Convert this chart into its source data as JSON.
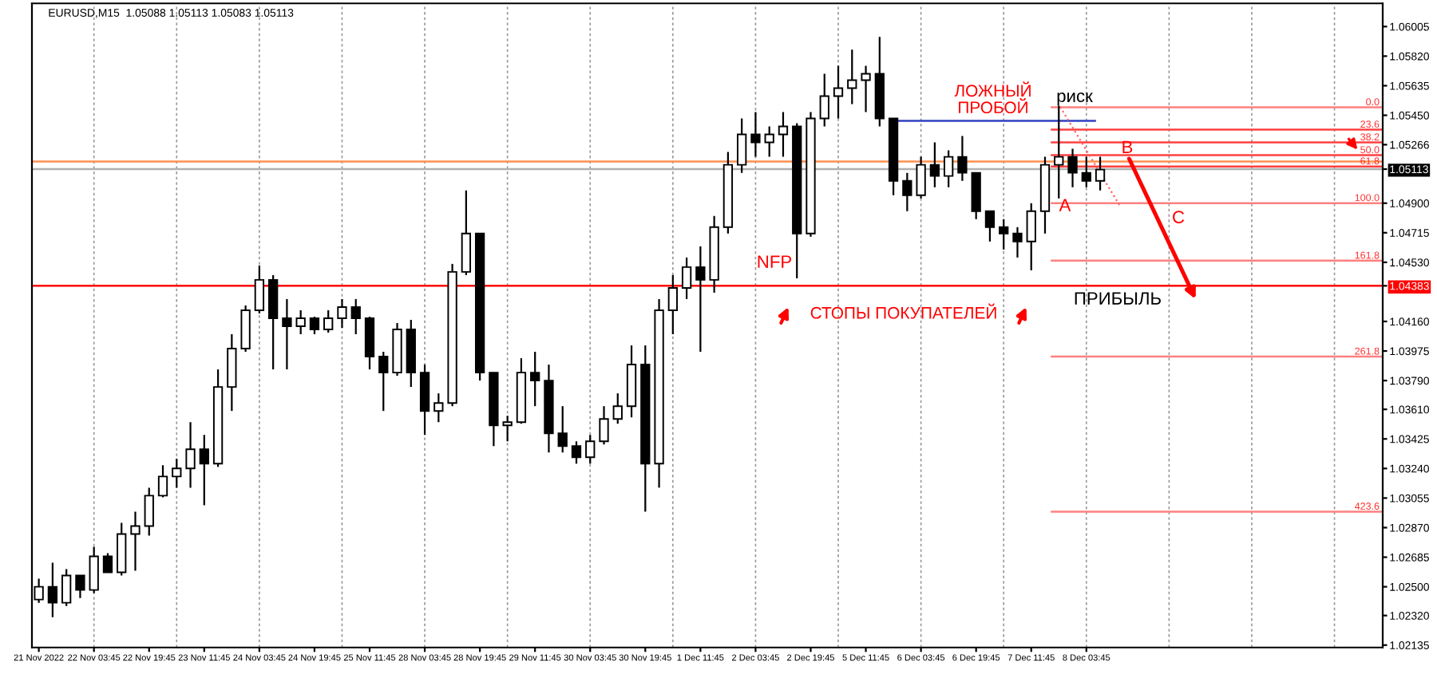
{
  "chart_data": {
    "type": "candlestick",
    "title": "EURUSD,M15  1.05088 1.05113 1.05083 1.05113",
    "categories": [
      "21 Nov 2022",
      null,
      null,
      null,
      "22 Nov 03:45",
      null,
      null,
      null,
      "22 Nov 19:45",
      null,
      null,
      null,
      "23 Nov 11:45",
      null,
      null,
      null,
      "24 Nov 03:45",
      null,
      null,
      null,
      "24 Nov 19:45",
      null,
      null,
      null,
      "25 Nov 11:45",
      null,
      null,
      null,
      "28 Nov 03:45",
      null,
      null,
      null,
      "28 Nov 19:45",
      null,
      null,
      null,
      "29 Nov 11:45",
      null,
      null,
      null,
      "30 Nov 03:45",
      null,
      null,
      null,
      "30 Nov 19:45",
      null,
      null,
      null,
      "1 Dec 11:45",
      null,
      null,
      null,
      "2 Dec 03:45",
      null,
      null,
      null,
      "2 Dec 19:45",
      null,
      null,
      null,
      "5 Dec 11:45",
      null,
      null,
      null,
      "6 Dec 03:45",
      null,
      null,
      null,
      "6 Dec 19:45",
      null,
      null,
      null,
      "7 Dec 11:45",
      null,
      null,
      null,
      "8 Dec 03:45",
      null,
      null,
      null,
      null,
      null,
      null,
      null,
      null,
      null,
      null,
      null,
      null,
      null,
      null,
      null,
      null,
      null,
      null,
      null,
      null,
      null
    ],
    "series": [
      {
        "color": "#000000",
        "ohlc": [
          [
            1.0242,
            1.0255,
            1.024,
            1.025
          ],
          [
            1.025,
            1.0265,
            1.0231,
            1.024
          ],
          [
            1.024,
            1.0261,
            1.0238,
            1.0257
          ],
          [
            1.0257,
            1.0257,
            1.0243,
            1.0248
          ],
          [
            1.0248,
            1.0275,
            1.0246,
            1.0269
          ],
          [
            1.0269,
            1.0271,
            1.0259,
            1.0259
          ],
          [
            1.0259,
            1.029,
            1.0257,
            1.0283
          ],
          [
            1.0283,
            1.0297,
            1.026,
            1.0288
          ],
          [
            1.0288,
            1.0312,
            1.0282,
            1.0307
          ],
          [
            1.0307,
            1.0326,
            1.0306,
            1.0319
          ],
          [
            1.0319,
            1.033,
            1.0312,
            1.0324
          ],
          [
            1.0324,
            1.0353,
            1.0312,
            1.0336
          ],
          [
            1.0336,
            1.0345,
            1.0301,
            1.0327
          ],
          [
            1.0327,
            1.0386,
            1.0325,
            1.0375
          ],
          [
            1.0375,
            1.0408,
            1.036,
            1.0399
          ],
          [
            1.0399,
            1.0426,
            1.0397,
            1.0423
          ],
          [
            1.0423,
            1.0451,
            1.0421,
            1.0442
          ],
          [
            1.0442,
            1.0445,
            1.0386,
            1.0418
          ],
          [
            1.0418,
            1.043,
            1.0386,
            1.0413
          ],
          [
            1.0413,
            1.0423,
            1.0408,
            1.0418
          ],
          [
            1.0418,
            1.0419,
            1.0408,
            1.0411
          ],
          [
            1.0411,
            1.0423,
            1.0409,
            1.0418
          ],
          [
            1.0418,
            1.043,
            1.0412,
            1.0425
          ],
          [
            1.0425,
            1.043,
            1.0408,
            1.0418
          ],
          [
            1.0418,
            1.0419,
            1.0386,
            1.0394
          ],
          [
            1.0394,
            1.0397,
            1.036,
            1.0384
          ],
          [
            1.0384,
            1.0415,
            1.0382,
            1.0411
          ],
          [
            1.0411,
            1.0417,
            1.0375,
            1.0384
          ],
          [
            1.0384,
            1.0389,
            1.0345,
            1.036
          ],
          [
            1.036,
            1.0371,
            1.0353,
            1.0365
          ],
          [
            1.0365,
            1.0452,
            1.0363,
            1.0447
          ],
          [
            1.0447,
            1.0498,
            1.0445,
            1.0471
          ],
          [
            1.0471,
            1.0471,
            1.0379,
            1.0384
          ],
          [
            1.0384,
            1.0384,
            1.0338,
            1.0351
          ],
          [
            1.0351,
            1.0357,
            1.0341,
            1.0353
          ],
          [
            1.0353,
            1.0393,
            1.0352,
            1.0384
          ],
          [
            1.0384,
            1.0397,
            1.0363,
            1.0379
          ],
          [
            1.0379,
            1.0389,
            1.0334,
            1.0346
          ],
          [
            1.0346,
            1.0363,
            1.0334,
            1.0338
          ],
          [
            1.0338,
            1.0341,
            1.0327,
            1.0331
          ],
          [
            1.0331,
            1.0345,
            1.0327,
            1.0341
          ],
          [
            1.0341,
            1.0363,
            1.0339,
            1.0355
          ],
          [
            1.0355,
            1.0371,
            1.0352,
            1.0363
          ],
          [
            1.0363,
            1.0401,
            1.0356,
            1.0389
          ],
          [
            1.0389,
            1.0401,
            1.0297,
            1.0327
          ],
          [
            1.0327,
            1.043,
            1.0312,
            1.0423
          ],
          [
            1.0423,
            1.0445,
            1.0408,
            1.0437
          ],
          [
            1.0437,
            1.0456,
            1.043,
            1.045
          ],
          [
            1.045,
            1.0463,
            1.0397,
            1.0442
          ],
          [
            1.0442,
            1.0482,
            1.0434,
            1.0475
          ],
          [
            1.0475,
            1.0522,
            1.0471,
            1.0514
          ],
          [
            1.0514,
            1.0543,
            1.0509,
            1.0533
          ],
          [
            1.0533,
            1.0547,
            1.0519,
            1.0528
          ],
          [
            1.0528,
            1.0538,
            1.0519,
            1.0533
          ],
          [
            1.0533,
            1.0547,
            1.0519,
            1.0538
          ],
          [
            1.0538,
            1.054,
            1.0443,
            1.0471
          ],
          [
            1.0471,
            1.0547,
            1.0469,
            1.0543
          ],
          [
            1.0543,
            1.0571,
            1.0538,
            1.0557
          ],
          [
            1.0557,
            1.0576,
            1.0543,
            1.0562
          ],
          [
            1.0562,
            1.0586,
            1.0552,
            1.0567
          ],
          [
            1.0567,
            1.0576,
            1.0547,
            1.0571
          ],
          [
            1.0571,
            1.0594,
            1.0538,
            1.0543
          ],
          [
            1.0543,
            1.0543,
            1.0495,
            1.0504
          ],
          [
            1.0504,
            1.0509,
            1.0485,
            1.0495
          ],
          [
            1.0495,
            1.0519,
            1.0493,
            1.0514
          ],
          [
            1.0514,
            1.0528,
            1.05,
            1.0507
          ],
          [
            1.0507,
            1.0523,
            1.05,
            1.0519
          ],
          [
            1.0519,
            1.0532,
            1.0504,
            1.0509
          ],
          [
            1.0509,
            1.0509,
            1.048,
            1.0485
          ],
          [
            1.0485,
            1.0485,
            1.0466,
            1.0475
          ],
          [
            1.0475,
            1.048,
            1.0461,
            1.0471
          ],
          [
            1.0471,
            1.0475,
            1.0456,
            1.0466
          ],
          [
            1.0466,
            1.049,
            1.0448,
            1.0485
          ],
          [
            1.0485,
            1.0519,
            1.0471,
            1.0514
          ],
          [
            1.0514,
            1.0551,
            1.0493,
            1.0519
          ],
          [
            1.0519,
            1.0524,
            1.05,
            1.0509
          ],
          [
            1.0509,
            1.0519,
            1.05,
            1.0504
          ],
          [
            1.0504,
            1.0519,
            1.0498,
            1.0511
          ],
          null,
          null,
          null,
          null,
          null,
          null,
          null,
          null,
          null,
          null,
          null,
          null,
          null,
          null,
          null,
          null,
          null,
          null,
          null,
          null
        ]
      }
    ],
    "ylim": [
      1.0212,
      1.0615
    ],
    "yticks": [
      {
        "value": 1.06005,
        "label": "1.06005"
      },
      {
        "value": 1.0582,
        "label": "1.05820"
      },
      1.05635,
      {
        "value": 1.0545,
        "label": "1.05450"
      },
      1.05266,
      1.05113,
      {
        "value": 1.049,
        "label": "1.04900"
      },
      1.04715,
      {
        "value": 1.0453,
        "label": "1.04530"
      },
      1.04383,
      {
        "value": 1.0416,
        "label": "1.04160"
      },
      1.03975,
      {
        "value": 1.0379,
        "label": "1.03790"
      },
      {
        "value": 1.0361,
        "label": "1.03610"
      },
      1.03425,
      {
        "value": 1.0324,
        "label": "1.03240"
      },
      1.03055,
      {
        "value": 1.0287,
        "label": "1.02870"
      },
      1.02685,
      {
        "value": 1.025,
        "label": "1.02500"
      },
      {
        "value": 1.0232,
        "label": "1.02320"
      },
      1.02135
    ],
    "ref_lines": [
      {
        "axis": "y",
        "value": 1.04383,
        "color": "#ff0000"
      },
      {
        "axis": "y",
        "value": 1.0516,
        "color": "#ff9050"
      },
      {
        "axis": "y",
        "value": 1.05113,
        "color": "#b0b0b0"
      },
      {
        "axis": "y",
        "value": 1.05415,
        "color": "#3040c0"
      },
      {
        "axis": "y",
        "value": 1.055,
        "color": "#ff8080"
      },
      {
        "axis": "y",
        "value": 1.0536,
        "color": "#ff4040"
      },
      {
        "axis": "y",
        "value": 1.0528,
        "color": "#ff4040"
      },
      {
        "axis": "y",
        "value": 1.052,
        "color": "#ff4040"
      },
      {
        "axis": "y",
        "value": 1.0513,
        "color": "#ff4040"
      },
      {
        "axis": "y",
        "value": 1.049,
        "color": "#ff8080"
      },
      {
        "axis": "y",
        "value": 1.0454,
        "color": "#ff8080"
      },
      {
        "axis": "y",
        "value": 1.0394,
        "color": "#ff8080"
      },
      {
        "axis": "y",
        "value": 1.0297,
        "color": "#ff8080"
      }
    ],
    "annotations": [
      "ЛОЖНЫЙ\nПРОБОЙ",
      {
        "text": "риск",
        "y": 1.0551
      },
      "NFP",
      "СТОПЫ ПОКУПАТЕЛЕЙ",
      "ПРИБЫЛЬ",
      {
        "text": "A",
        "y": 1.0493
      },
      {
        "text": "B",
        "y": 1.0519
      },
      "C",
      {
        "text": "0.0",
        "y": 1.055
      },
      {
        "text": "23.6",
        "y": 1.0536
      },
      {
        "text": "38.2",
        "y": 1.0528
      },
      {
        "text": "50.0",
        "y": 1.052
      },
      {
        "text": "61.8",
        "y": 1.0513
      },
      {
        "text": "100.0",
        "y": 1.049
      },
      {
        "text": "161.8",
        "y": 1.0454
      },
      {
        "text": "261.8",
        "y": 1.0394
      },
      {
        "text": "423.6",
        "y": 1.0297
      }
    ],
    "grid": "x"
  }
}
